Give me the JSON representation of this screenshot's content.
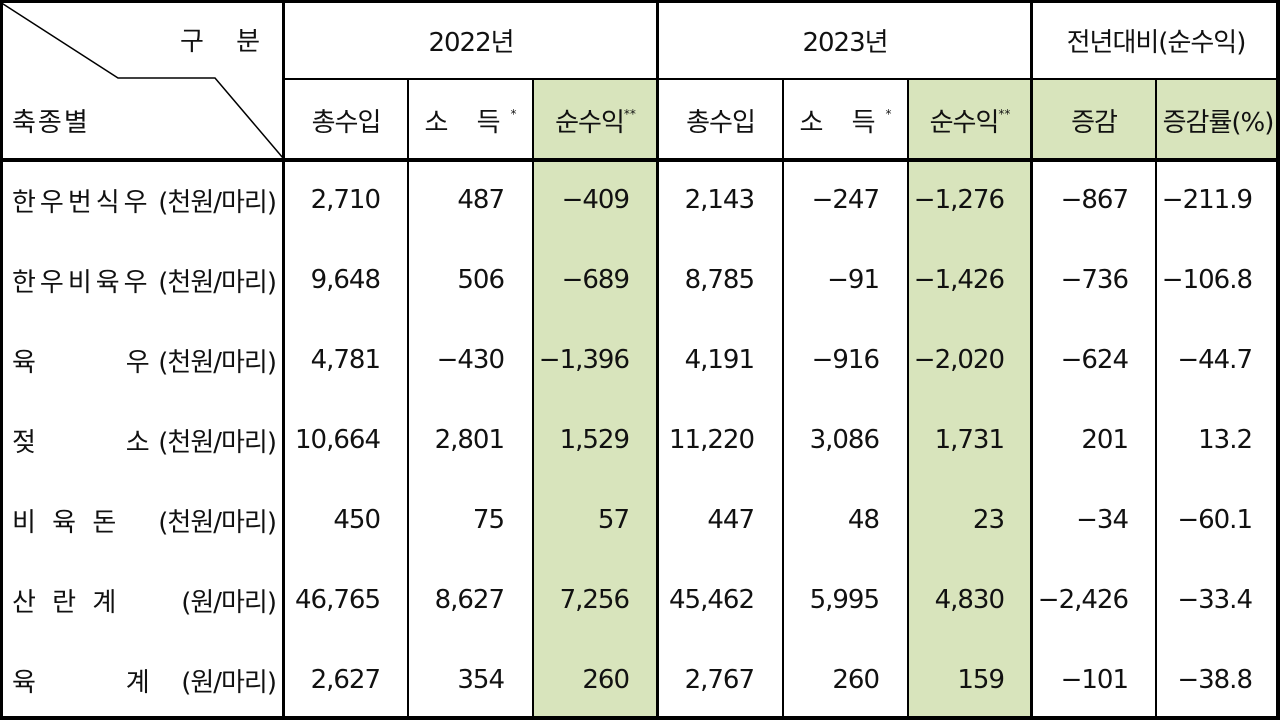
{
  "header": {
    "corner_top": "구 분",
    "corner_bottom": "축종별",
    "year1": "2022년",
    "year2": "2023년",
    "compare": "전년대비(순수익)",
    "col_total": "총수입",
    "col_income": "소 득",
    "col_income_mark": "*",
    "col_profit": "순수익",
    "col_profit_mark": "**",
    "col_change": "증감",
    "col_rate": "증감률(%)"
  },
  "rows": [
    {
      "name": "한우번식우",
      "unit": "(천원/마리)",
      "v": [
        "2,710",
        "487",
        "−409",
        "2,143",
        "−247",
        "−1,276",
        "−867",
        "−211.9"
      ]
    },
    {
      "name": "한우비육우",
      "unit": "(천원/마리)",
      "v": [
        "9,648",
        "506",
        "−689",
        "8,785",
        "−91",
        "−1,426",
        "−736",
        "−106.8"
      ]
    },
    {
      "name": "육       우",
      "unit": "(천원/마리)",
      "v": [
        "4,781",
        "−430",
        "−1,396",
        "4,191",
        "−916",
        "−2,020",
        "−624",
        "−44.7"
      ]
    },
    {
      "name": "젖       소",
      "unit": "(천원/마리)",
      "v": [
        "10,664",
        "2,801",
        "1,529",
        "11,220",
        "3,086",
        "1,731",
        "201",
        "13.2"
      ]
    },
    {
      "name": "비 육 돈",
      "unit": "(천원/마리)",
      "v": [
        "450",
        "75",
        "57",
        "447",
        "48",
        "23",
        "−34",
        "−60.1"
      ]
    },
    {
      "name": "산 란 계",
      "unit": "(원/마리)",
      "v": [
        "46,765",
        "8,627",
        "7,256",
        "45,462",
        "5,995",
        "4,830",
        "−2,426",
        "−33.4"
      ]
    },
    {
      "name": "육       계",
      "unit": "(원/마리)",
      "v": [
        "2,627",
        "354",
        "260",
        "2,767",
        "260",
        "159",
        "−101",
        "−38.8"
      ]
    }
  ]
}
